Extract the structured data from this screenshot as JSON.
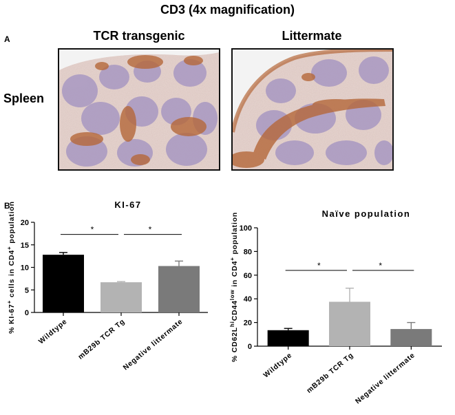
{
  "figure": {
    "title": "CD3 (4x magnification)",
    "panel_a_label": "A",
    "panel_b_label": "B",
    "columns": [
      "TCR transgenic",
      "Littermate"
    ],
    "row_label": "Spleen"
  },
  "colors": {
    "tissue_base": "#e7d6d1",
    "follicle": "#a898c2",
    "cd3_stain": "#b5683a",
    "wildtype_bar": "#000000",
    "tg_bar": "#b3b3b3",
    "neg_bar": "#7a7a7a"
  },
  "chart_data": [
    {
      "type": "bar",
      "title": "KI-67",
      "ylabel_parts": [
        "% KI-67",
        "+",
        " cells in CD4",
        "+",
        " population"
      ],
      "categories": [
        "Wildtype",
        "mB29b TCR Tg",
        "Negative littermate"
      ],
      "values": [
        12.8,
        6.7,
        10.3
      ],
      "errors": [
        0.5,
        0.15,
        1.1
      ],
      "ylim": [
        0,
        20
      ],
      "yticks": [
        "0",
        "5",
        "10",
        "15",
        "20"
      ],
      "significance": [
        {
          "from": 0,
          "to": 1,
          "label": "*",
          "level": 17.3
        },
        {
          "from": 1,
          "to": 2,
          "label": "*",
          "level": 17.3
        }
      ]
    },
    {
      "type": "bar",
      "title": "Naïve population",
      "ylabel_parts": [
        "% CD62L",
        "hi",
        "CD44",
        "low",
        " in CD4",
        "+",
        " population"
      ],
      "categories": [
        "Wildtype",
        "mB29b TCR Tg",
        "Negative littermate"
      ],
      "values": [
        13.5,
        37.5,
        14.5
      ],
      "errors": [
        1.5,
        11.5,
        5.5
      ],
      "ylim": [
        0,
        100
      ],
      "yticks": [
        "0",
        "20",
        "40",
        "60",
        "80",
        "100"
      ],
      "significance": [
        {
          "from": 0,
          "to": 1,
          "label": "*",
          "level": 64
        },
        {
          "from": 1,
          "to": 2,
          "label": "*",
          "level": 64
        }
      ]
    }
  ]
}
